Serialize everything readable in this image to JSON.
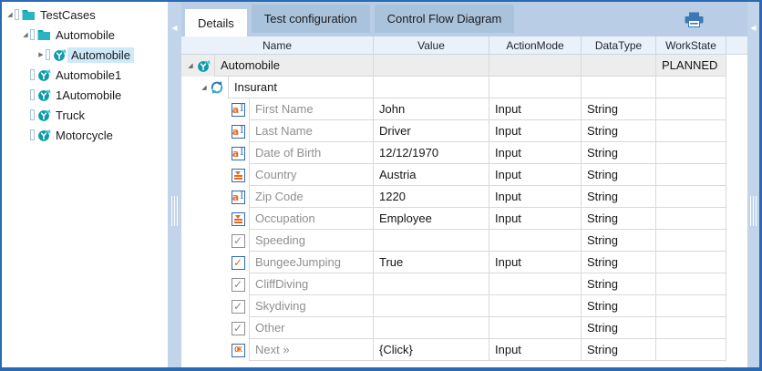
{
  "colors": {
    "accent_blue": "#2a6ab3",
    "icon_blue": "#2b6bb2",
    "teal": "#2ab4c3",
    "orange": "#e8681e",
    "tab_bar": "#b9cde6",
    "inactive_tab": "#a9c3dd",
    "selection": "#cde9fa",
    "header_bg": "#ebf1f9",
    "highlight_row": "#ededed",
    "splitter": "#c2d4ea"
  },
  "tree": {
    "items": [
      {
        "label": "TestCases",
        "level": 0,
        "expander": "expanded",
        "icon": "folder",
        "selected": false
      },
      {
        "label": "Automobile",
        "level": 1,
        "expander": "expanded",
        "icon": "folder",
        "selected": false
      },
      {
        "label": "Automobile",
        "level": 2,
        "expander": "collapsed",
        "icon": "testcase",
        "selected": true
      },
      {
        "label": "Automobile1",
        "level": 1,
        "expander": "none",
        "icon": "testcase",
        "selected": false
      },
      {
        "label": "1Automobile",
        "level": 1,
        "expander": "none",
        "icon": "testcase",
        "selected": false
      },
      {
        "label": "Truck",
        "level": 1,
        "expander": "none",
        "icon": "testcase",
        "selected": false
      },
      {
        "label": "Motorcycle",
        "level": 1,
        "expander": "none",
        "icon": "testcase",
        "selected": false
      }
    ]
  },
  "tabs": [
    {
      "label": "Details",
      "active": true
    },
    {
      "label": "Test configuration",
      "active": false
    },
    {
      "label": "Control Flow Diagram",
      "active": false
    }
  ],
  "toolbar": {
    "printer_icon": "printer"
  },
  "grid": {
    "columns": [
      "Name",
      "Value",
      "ActionMode",
      "DataType",
      "WorkState"
    ],
    "rows": [
      {
        "name": "Automobile",
        "value": "",
        "action_mode": "",
        "data_type": "",
        "work_state": "PLANNED",
        "icon": "testcase",
        "level": 0,
        "expander": "expanded",
        "highlight": true
      },
      {
        "name": "Insurant",
        "value": "",
        "action_mode": "",
        "data_type": "",
        "work_state": "",
        "icon": "rerun",
        "level": 1,
        "expander": "expanded",
        "highlight": false
      },
      {
        "name": "First Name",
        "value": "John",
        "action_mode": "Input",
        "data_type": "String",
        "work_state": "",
        "icon": "textfield",
        "level": 2,
        "expander": "none",
        "highlight": false
      },
      {
        "name": "Last Name",
        "value": "Driver",
        "action_mode": "Input",
        "data_type": "String",
        "work_state": "",
        "icon": "textfield",
        "level": 2,
        "expander": "none",
        "highlight": false
      },
      {
        "name": "Date of Birth",
        "value": "12/12/1970",
        "action_mode": "Input",
        "data_type": "String",
        "work_state": "",
        "icon": "textfield",
        "level": 2,
        "expander": "none",
        "highlight": false
      },
      {
        "name": "Country",
        "value": "Austria",
        "action_mode": "Input",
        "data_type": "String",
        "work_state": "",
        "icon": "dropdown",
        "level": 2,
        "expander": "none",
        "highlight": false
      },
      {
        "name": "Zip Code",
        "value": "1220",
        "action_mode": "Input",
        "data_type": "String",
        "work_state": "",
        "icon": "textfield",
        "level": 2,
        "expander": "none",
        "highlight": false
      },
      {
        "name": "Occupation",
        "value": "Employee",
        "action_mode": "Input",
        "data_type": "String",
        "work_state": "",
        "icon": "dropdown",
        "level": 2,
        "expander": "none",
        "highlight": false
      },
      {
        "name": "Speeding",
        "value": "",
        "action_mode": "",
        "data_type": "String",
        "work_state": "",
        "icon": "checkbox",
        "level": 2,
        "expander": "none",
        "highlight": false
      },
      {
        "name": "BungeeJumping",
        "value": "True",
        "action_mode": "Input",
        "data_type": "String",
        "work_state": "",
        "icon": "checkbox-checked",
        "level": 2,
        "expander": "none",
        "highlight": false
      },
      {
        "name": "CliffDiving",
        "value": "",
        "action_mode": "",
        "data_type": "String",
        "work_state": "",
        "icon": "checkbox",
        "level": 2,
        "expander": "none",
        "highlight": false
      },
      {
        "name": "Skydiving",
        "value": "",
        "action_mode": "",
        "data_type": "String",
        "work_state": "",
        "icon": "checkbox",
        "level": 2,
        "expander": "none",
        "highlight": false
      },
      {
        "name": "Other",
        "value": "",
        "action_mode": "",
        "data_type": "String",
        "work_state": "",
        "icon": "checkbox",
        "level": 2,
        "expander": "none",
        "highlight": false
      },
      {
        "name": "Next »",
        "value": "{Click}",
        "action_mode": "Input",
        "data_type": "String",
        "work_state": "",
        "icon": "ok",
        "level": 2,
        "expander": "none",
        "highlight": false
      }
    ]
  }
}
